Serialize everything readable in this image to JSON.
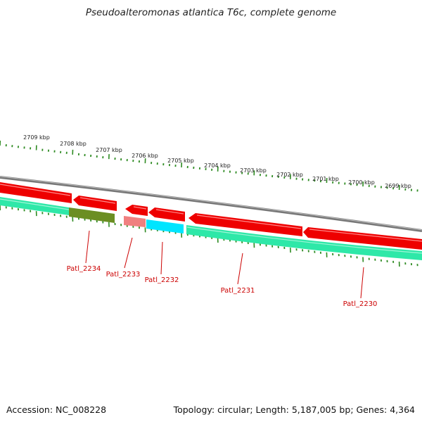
{
  "title": "Pseudoalteromonas atlantica T6c, complete genome",
  "footer": {
    "accession_label": "Accession:",
    "accession": "NC_008228",
    "topology_label": "Topology:",
    "topology": "circular",
    "length_label": "Length:",
    "length": "5,187,005 bp",
    "genes_label": "Genes:",
    "genes": "4,364"
  },
  "scale_ticks": [
    "2709 kbp",
    "2708 kbp",
    "2707 kbp",
    "2706 kbp",
    "2705 kbp",
    "2704 kbp",
    "2703 kbp",
    "2702 kbp",
    "2701 kbp",
    "2700 kbp",
    "2699 kbp"
  ],
  "genes": [
    {
      "label": "Patl_2234",
      "feature_color": "#6b8e23"
    },
    {
      "label": "Patl_2233",
      "feature_color": "#f08080"
    },
    {
      "label": "Patl_2232",
      "feature_color": "#00e5ff"
    },
    {
      "label": "Patl_2231",
      "feature_color": "#2ee8a8"
    },
    {
      "label": "Patl_2230",
      "feature_color": "#2ee8a8"
    }
  ],
  "colors": {
    "cds": "#ee0000",
    "backbone": "#888888",
    "gene_label": "#cc0000",
    "tick": "#2e8b22"
  }
}
